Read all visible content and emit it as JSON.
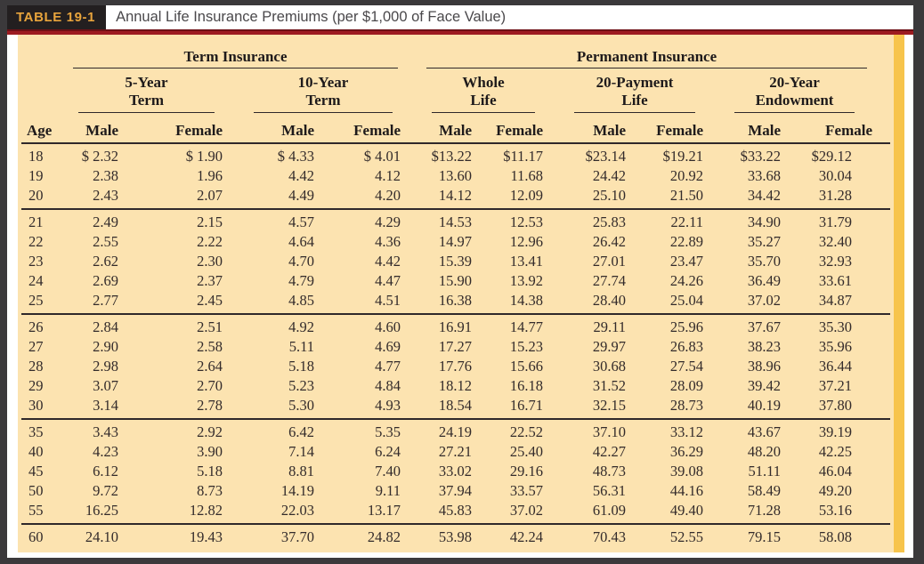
{
  "header": {
    "table_label": "TABLE 19-1",
    "title": "Annual Life Insurance Premiums (per $1,000 of Face Value)"
  },
  "table": {
    "group_headers": [
      {
        "label": "Term Insurance"
      },
      {
        "label": "Permanent Insurance"
      }
    ],
    "sub_headers": [
      {
        "line1": "5-Year",
        "line2": "Term"
      },
      {
        "line1": "10-Year",
        "line2": "Term"
      },
      {
        "line1": "Whole",
        "line2": "Life"
      },
      {
        "line1": "20-Payment",
        "line2": "Life"
      },
      {
        "line1": "20-Year",
        "line2": "Endowment"
      }
    ],
    "age_header": "Age",
    "sex_headers": [
      "Male",
      "Female"
    ],
    "row_groups": [
      {
        "rows": [
          {
            "age": "18",
            "values": [
              "$ 2.32",
              "$ 1.90",
              "$ 4.33",
              "$ 4.01",
              "$13.22",
              "$11.17",
              "$23.14",
              "$19.21",
              "$33.22",
              "$29.12"
            ]
          },
          {
            "age": "19",
            "values": [
              "2.38",
              "1.96",
              "4.42",
              "4.12",
              "13.60",
              "11.68",
              "24.42",
              "20.92",
              "33.68",
              "30.04"
            ]
          },
          {
            "age": "20",
            "values": [
              "2.43",
              "2.07",
              "4.49",
              "4.20",
              "14.12",
              "12.09",
              "25.10",
              "21.50",
              "34.42",
              "31.28"
            ]
          }
        ]
      },
      {
        "rows": [
          {
            "age": "21",
            "values": [
              "2.49",
              "2.15",
              "4.57",
              "4.29",
              "14.53",
              "12.53",
              "25.83",
              "22.11",
              "34.90",
              "31.79"
            ]
          },
          {
            "age": "22",
            "values": [
              "2.55",
              "2.22",
              "4.64",
              "4.36",
              "14.97",
              "12.96",
              "26.42",
              "22.89",
              "35.27",
              "32.40"
            ]
          },
          {
            "age": "23",
            "values": [
              "2.62",
              "2.30",
              "4.70",
              "4.42",
              "15.39",
              "13.41",
              "27.01",
              "23.47",
              "35.70",
              "32.93"
            ]
          },
          {
            "age": "24",
            "values": [
              "2.69",
              "2.37",
              "4.79",
              "4.47",
              "15.90",
              "13.92",
              "27.74",
              "24.26",
              "36.49",
              "33.61"
            ]
          },
          {
            "age": "25",
            "values": [
              "2.77",
              "2.45",
              "4.85",
              "4.51",
              "16.38",
              "14.38",
              "28.40",
              "25.04",
              "37.02",
              "34.87"
            ]
          }
        ]
      },
      {
        "rows": [
          {
            "age": "26",
            "values": [
              "2.84",
              "2.51",
              "4.92",
              "4.60",
              "16.91",
              "14.77",
              "29.11",
              "25.96",
              "37.67",
              "35.30"
            ]
          },
          {
            "age": "27",
            "values": [
              "2.90",
              "2.58",
              "5.11",
              "4.69",
              "17.27",
              "15.23",
              "29.97",
              "26.83",
              "38.23",
              "35.96"
            ]
          },
          {
            "age": "28",
            "values": [
              "2.98",
              "2.64",
              "5.18",
              "4.77",
              "17.76",
              "15.66",
              "30.68",
              "27.54",
              "38.96",
              "36.44"
            ]
          },
          {
            "age": "29",
            "values": [
              "3.07",
              "2.70",
              "5.23",
              "4.84",
              "18.12",
              "16.18",
              "31.52",
              "28.09",
              "39.42",
              "37.21"
            ]
          },
          {
            "age": "30",
            "values": [
              "3.14",
              "2.78",
              "5.30",
              "4.93",
              "18.54",
              "16.71",
              "32.15",
              "28.73",
              "40.19",
              "37.80"
            ]
          }
        ]
      },
      {
        "rows": [
          {
            "age": "35",
            "values": [
              "3.43",
              "2.92",
              "6.42",
              "5.35",
              "24.19",
              "22.52",
              "37.10",
              "33.12",
              "43.67",
              "39.19"
            ]
          },
          {
            "age": "40",
            "values": [
              "4.23",
              "3.90",
              "7.14",
              "6.24",
              "27.21",
              "25.40",
              "42.27",
              "36.29",
              "48.20",
              "42.25"
            ]
          },
          {
            "age": "45",
            "values": [
              "6.12",
              "5.18",
              "8.81",
              "7.40",
              "33.02",
              "29.16",
              "48.73",
              "39.08",
              "51.11",
              "46.04"
            ]
          },
          {
            "age": "50",
            "values": [
              "9.72",
              "8.73",
              "14.19",
              "9.11",
              "37.94",
              "33.57",
              "56.31",
              "44.16",
              "58.49",
              "49.20"
            ]
          },
          {
            "age": "55",
            "values": [
              "16.25",
              "12.82",
              "22.03",
              "13.17",
              "45.83",
              "37.02",
              "61.09",
              "49.40",
              "71.28",
              "53.16"
            ]
          }
        ]
      },
      {
        "rows": [
          {
            "age": "60",
            "values": [
              "24.10",
              "19.43",
              "37.70",
              "24.82",
              "53.98",
              "42.24",
              "70.43",
              "52.55",
              "79.15",
              "58.08"
            ]
          }
        ]
      }
    ]
  },
  "colors": {
    "frame": "#3b393b",
    "page_bg": "#ffffff",
    "accent_red": "#9d1b21",
    "accent_red_dark": "#6e1016",
    "panel_bg": "#fce3b0",
    "stripe_gold": "#f7c44c",
    "label_bg": "#231f20",
    "label_text": "#e8a43c",
    "rule": "#2f282a",
    "text": "#332b2b",
    "title_text": "#4a484b"
  }
}
